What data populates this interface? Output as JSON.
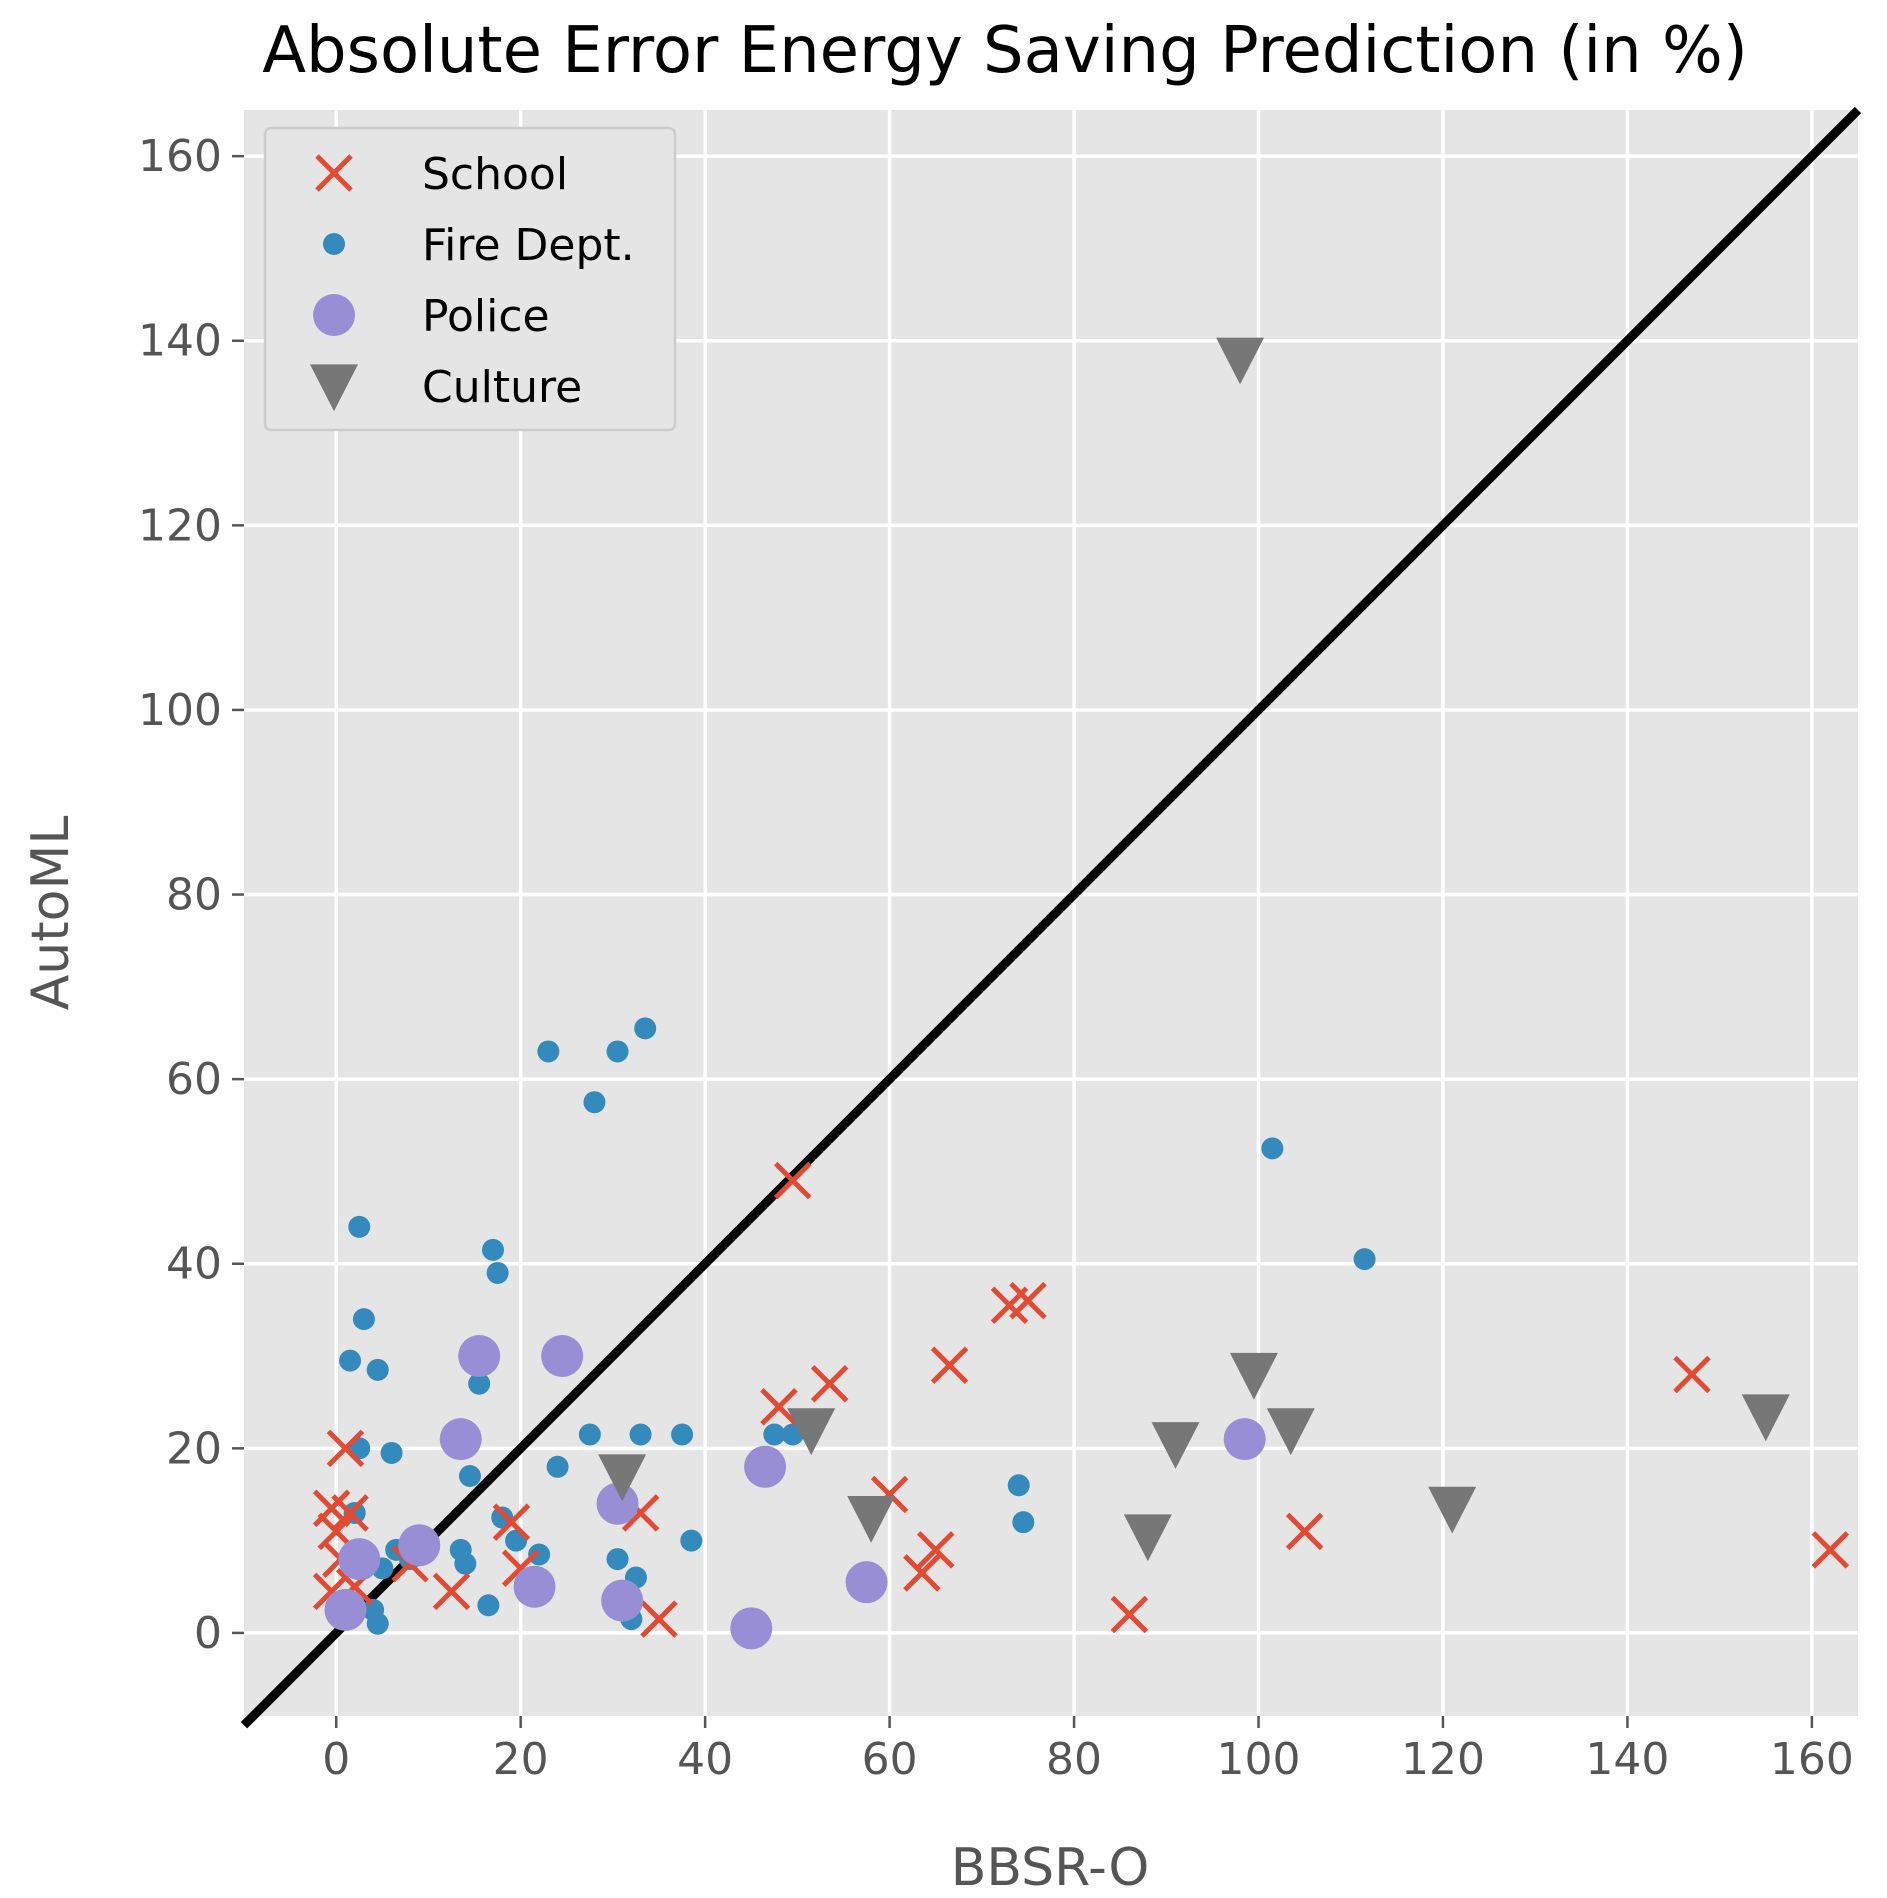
{
  "chart_data": {
    "type": "scatter",
    "title": "Absolute Error Energy Saving Prediction (in %)",
    "xlabel": "BBSR-O",
    "ylabel": "AutoML",
    "xlim": [
      -10,
      165
    ],
    "ylim": [
      -9,
      165
    ],
    "xticks": [
      0,
      20,
      40,
      60,
      80,
      100,
      120,
      140,
      160
    ],
    "yticks": [
      0,
      20,
      40,
      60,
      80,
      100,
      120,
      140,
      160
    ],
    "grid": true,
    "legend_position": "top-left",
    "reference_line": {
      "label": "y = x",
      "from": [
        -10,
        -10
      ],
      "to": [
        165,
        165
      ],
      "color": "#000000"
    },
    "series": [
      {
        "name": "School",
        "marker": "x",
        "color": "#e24a33",
        "points": [
          [
            -0.5,
            13.5
          ],
          [
            0,
            11
          ],
          [
            0.5,
            8
          ],
          [
            -0.5,
            4.5
          ],
          [
            1.5,
            13
          ],
          [
            1,
            20
          ],
          [
            2,
            5
          ],
          [
            8,
            7.5
          ],
          [
            12.5,
            4.5
          ],
          [
            19,
            12
          ],
          [
            20,
            7
          ],
          [
            33,
            13
          ],
          [
            35,
            1.5
          ],
          [
            48,
            24.5
          ],
          [
            49.5,
            49
          ],
          [
            53.5,
            27
          ],
          [
            60,
            15
          ],
          [
            63.5,
            6.5
          ],
          [
            65,
            9
          ],
          [
            66.5,
            29
          ],
          [
            73,
            35.5
          ],
          [
            75,
            36
          ],
          [
            86,
            2
          ],
          [
            105,
            11
          ],
          [
            147,
            28
          ],
          [
            162,
            9
          ]
        ]
      },
      {
        "name": "Fire Dept.",
        "marker": "circle",
        "color": "#348abd",
        "points": [
          [
            2.5,
            44
          ],
          [
            3,
            34
          ],
          [
            1.5,
            29.5
          ],
          [
            2.5,
            20
          ],
          [
            4.5,
            28.5
          ],
          [
            6,
            19.5
          ],
          [
            2,
            13
          ],
          [
            3,
            7
          ],
          [
            4,
            2.5
          ],
          [
            4.5,
            1
          ],
          [
            5,
            7
          ],
          [
            6.5,
            9
          ],
          [
            8,
            8
          ],
          [
            13.5,
            9
          ],
          [
            14,
            7.5
          ],
          [
            14.5,
            17
          ],
          [
            15.5,
            27
          ],
          [
            17,
            41.5
          ],
          [
            17.5,
            39
          ],
          [
            18,
            12.5
          ],
          [
            16.5,
            3
          ],
          [
            19.5,
            10
          ],
          [
            22,
            8.5
          ],
          [
            23,
            63
          ],
          [
            24,
            18
          ],
          [
            27.5,
            21.5
          ],
          [
            28,
            57.5
          ],
          [
            30.5,
            63
          ],
          [
            30.5,
            8
          ],
          [
            32,
            1.5
          ],
          [
            32.5,
            6
          ],
          [
            33,
            21.5
          ],
          [
            33.5,
            65.5
          ],
          [
            37.5,
            21.5
          ],
          [
            38.5,
            10
          ],
          [
            47.5,
            21.5
          ],
          [
            49.5,
            21.5
          ],
          [
            74,
            16
          ],
          [
            74.5,
            12
          ],
          [
            101.5,
            52.5
          ],
          [
            111.5,
            40.5
          ]
        ]
      },
      {
        "name": "Police",
        "marker": "circle-large",
        "color": "#988ed5",
        "points": [
          [
            1,
            2.5
          ],
          [
            2.5,
            8
          ],
          [
            9,
            9.5
          ],
          [
            13.5,
            21
          ],
          [
            15.5,
            30
          ],
          [
            21.5,
            5
          ],
          [
            24.5,
            30
          ],
          [
            30.5,
            14
          ],
          [
            31,
            3.5
          ],
          [
            45,
            0.5
          ],
          [
            46.5,
            18
          ],
          [
            57.5,
            5.5
          ],
          [
            98.5,
            21
          ]
        ]
      },
      {
        "name": "Culture",
        "marker": "triangle-down",
        "color": "#777777",
        "points": [
          [
            98,
            138
          ],
          [
            31,
            17
          ],
          [
            51.5,
            22
          ],
          [
            58,
            12.5
          ],
          [
            88,
            10.5
          ],
          [
            91,
            20.5
          ],
          [
            99.5,
            28
          ],
          [
            103.5,
            22
          ],
          [
            121,
            13.5
          ],
          [
            155,
            23.5
          ]
        ]
      }
    ]
  }
}
